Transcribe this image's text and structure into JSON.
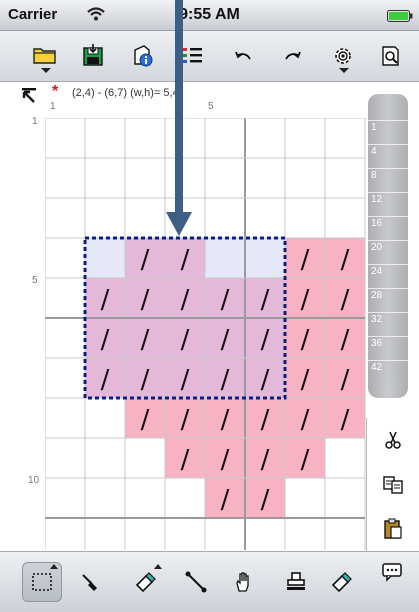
{
  "status_bar": {
    "carrier": "Carrier",
    "time": "9:55 AM",
    "wifi_icon": "wifi-icon",
    "battery_icon": "battery-icon",
    "battery_color": "#3dcc3d"
  },
  "toolbar": {
    "items": [
      {
        "name": "open-folder",
        "icon": "folder-icon",
        "has_dropdown": true
      },
      {
        "name": "save",
        "icon": "save-disk-icon",
        "has_dropdown": false
      },
      {
        "name": "info",
        "icon": "document-info-icon",
        "has_dropdown": false
      },
      {
        "name": "color-list",
        "icon": "list-icon",
        "has_dropdown": false
      },
      {
        "name": "undo",
        "icon": "undo-icon",
        "has_dropdown": false
      },
      {
        "name": "redo",
        "icon": "redo-icon",
        "has_dropdown": false
      },
      {
        "name": "settings",
        "icon": "gear-icon",
        "has_dropdown": true
      },
      {
        "name": "preview",
        "icon": "magnifier-document-icon",
        "has_dropdown": false
      }
    ]
  },
  "info_bar": {
    "modified_marker": "*",
    "selection_text": "(2,4) - (6,7) (w,h)= 5,4)",
    "col_labels": [
      "1",
      "5"
    ],
    "row_labels": [
      "1",
      "5",
      "10"
    ]
  },
  "grid": {
    "cols": 8,
    "rows": 11,
    "pink_color": "#f7b2c4",
    "selection_fill_color": "#e3b8d8",
    "selection_light_color": "#e6e8fa",
    "selection_border_color": "#0a1f84",
    "stitch_symbol": "/",
    "stitched_cells": [
      [
        3,
        2
      ],
      [
        3,
        3
      ],
      [
        3,
        6
      ],
      [
        3,
        7
      ],
      [
        4,
        1
      ],
      [
        4,
        2
      ],
      [
        4,
        3
      ],
      [
        4,
        4
      ],
      [
        4,
        5
      ],
      [
        4,
        6
      ],
      [
        4,
        7
      ],
      [
        5,
        1
      ],
      [
        5,
        2
      ],
      [
        5,
        3
      ],
      [
        5,
        4
      ],
      [
        5,
        5
      ],
      [
        5,
        6
      ],
      [
        5,
        7
      ],
      [
        6,
        1
      ],
      [
        6,
        2
      ],
      [
        6,
        3
      ],
      [
        6,
        4
      ],
      [
        6,
        5
      ],
      [
        6,
        6
      ],
      [
        6,
        7
      ],
      [
        7,
        2
      ],
      [
        7,
        3
      ],
      [
        7,
        4
      ],
      [
        7,
        5
      ],
      [
        7,
        6
      ],
      [
        7,
        7
      ],
      [
        8,
        3
      ],
      [
        8,
        4
      ],
      [
        8,
        5
      ],
      [
        8,
        6
      ],
      [
        9,
        4
      ],
      [
        9,
        5
      ]
    ],
    "pink_cells": [
      [
        3,
        6
      ],
      [
        3,
        7
      ],
      [
        4,
        6
      ],
      [
        4,
        7
      ],
      [
        5,
        6
      ],
      [
        5,
        7
      ],
      [
        6,
        6
      ],
      [
        6,
        7
      ],
      [
        7,
        2
      ],
      [
        7,
        3
      ],
      [
        7,
        4
      ],
      [
        7,
        5
      ],
      [
        7,
        6
      ],
      [
        7,
        7
      ],
      [
        8,
        3
      ],
      [
        8,
        4
      ],
      [
        8,
        5
      ],
      [
        8,
        6
      ],
      [
        9,
        4
      ],
      [
        9,
        5
      ]
    ],
    "selection": {
      "col": 1,
      "row": 3,
      "w": 5,
      "h": 4
    },
    "selection_light_cells": [
      [
        3,
        1
      ],
      [
        3,
        4
      ],
      [
        3,
        5
      ]
    ]
  },
  "ruler": {
    "labels": [
      "1",
      "4",
      "8",
      "12",
      "16",
      "20",
      "24",
      "28",
      "32",
      "36",
      "42"
    ]
  },
  "side_panel": {
    "items": [
      {
        "name": "cut",
        "icon": "scissors-icon"
      },
      {
        "name": "copy",
        "icon": "copy-icon"
      },
      {
        "name": "paste",
        "icon": "paste-icon"
      },
      {
        "name": "more",
        "icon": "speech-bubble-icon"
      }
    ]
  },
  "bottom_bar": {
    "items": [
      {
        "name": "select-rect",
        "icon": "dotted-rect-icon",
        "active": true
      },
      {
        "name": "pen",
        "icon": "pen-icon",
        "active": false
      },
      {
        "name": "fill",
        "icon": "paint-bucket-icon",
        "active": false
      },
      {
        "name": "line",
        "icon": "line-tool-icon",
        "active": false
      },
      {
        "name": "hand",
        "icon": "hand-icon",
        "active": false
      },
      {
        "name": "stamp",
        "icon": "stamp-icon",
        "active": false
      },
      {
        "name": "eraser",
        "icon": "eraser-icon",
        "active": false
      },
      {
        "name": "comment",
        "icon": "comment-icon",
        "active": false
      }
    ]
  }
}
